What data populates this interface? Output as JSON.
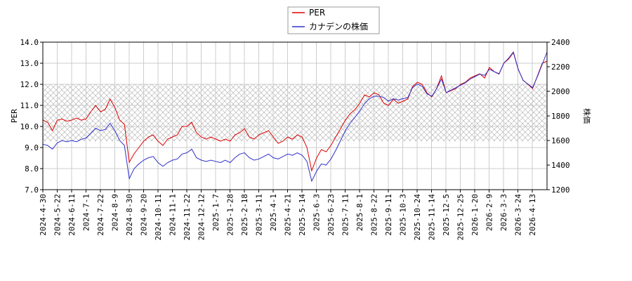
{
  "chart_data": {
    "type": "line",
    "title": "",
    "xlabel": "",
    "ylabel": "PER",
    "y2label": "株価",
    "ylim": [
      7.0,
      14.0
    ],
    "y2lim": [
      1200,
      2400
    ],
    "yticks": [
      "7.0",
      "8.0",
      "9.0",
      "10.0",
      "11.0",
      "12.0",
      "13.0",
      "14.0"
    ],
    "y2ticks": [
      "1200",
      "1400",
      "1600",
      "1800",
      "2000",
      "2200",
      "2400"
    ],
    "x_tick_labels": [
      "2024-4-30",
      "2024-5-22",
      "2024-6-11",
      "2024-7-1",
      "2024-7-22",
      "2024-8-9",
      "2024-8-30",
      "2024-9-20",
      "2024-10-11",
      "2024-11-1",
      "2024-11-22",
      "2024-12-12",
      "2025-1-7",
      "2025-1-28",
      "2025-2-18",
      "2025-3-11",
      "2025-4-1",
      "2025-4-21",
      "2025-5-14",
      "2025-6-3",
      "2025-6-23",
      "2025-7-11",
      "2025-8-1",
      "2025-8-22",
      "2025-9-11",
      "2025-10-3",
      "2025-10-24",
      "2025-11-14",
      "2025-12-5",
      "2025-12-25",
      "2026-1-20",
      "2026-2-9",
      "2026-3-3",
      "2026-3-24",
      "2026-4-13"
    ],
    "grid": true,
    "shaded_band_per": [
      9.3,
      12.0
    ],
    "legend_position": "top-center",
    "series": [
      {
        "name": "PER",
        "color": "#dd0000",
        "axis": "left",
        "values": [
          10.3,
          10.2,
          9.8,
          10.3,
          10.35,
          10.25,
          10.3,
          10.4,
          10.3,
          10.35,
          10.7,
          11.0,
          10.7,
          10.8,
          11.3,
          10.9,
          10.3,
          10.1,
          8.3,
          8.7,
          9.0,
          9.3,
          9.5,
          9.6,
          9.3,
          9.1,
          9.4,
          9.5,
          9.6,
          10.0,
          10.0,
          10.2,
          9.7,
          9.5,
          9.4,
          9.5,
          9.4,
          9.3,
          9.4,
          9.3,
          9.6,
          9.7,
          9.9,
          9.5,
          9.4,
          9.6,
          9.7,
          9.8,
          9.5,
          9.2,
          9.3,
          9.5,
          9.4,
          9.6,
          9.5,
          9.0,
          7.9,
          8.5,
          8.9,
          8.8,
          9.1,
          9.5,
          9.9,
          10.3,
          10.6,
          10.8,
          11.1,
          11.5,
          11.4,
          11.6,
          11.5,
          11.1,
          11.0,
          11.3,
          11.1,
          11.2,
          11.3,
          11.9,
          12.1,
          12.0,
          11.6,
          11.4,
          11.8,
          12.4,
          11.6,
          11.7,
          11.8,
          12.0,
          12.1,
          12.3,
          12.4,
          12.5,
          12.3,
          12.8,
          12.6,
          12.5,
          13.0,
          13.2,
          13.5,
          12.7,
          12.2,
          12.0,
          11.8,
          12.4,
          13.0,
          13.1
        ]
      },
      {
        "name": "カナデンの株価",
        "color": "#3030cc",
        "axis": "right",
        "values": [
          1570,
          1560,
          1530,
          1580,
          1600,
          1590,
          1600,
          1590,
          1610,
          1620,
          1660,
          1700,
          1680,
          1690,
          1740,
          1680,
          1600,
          1560,
          1290,
          1370,
          1410,
          1440,
          1460,
          1470,
          1420,
          1390,
          1420,
          1440,
          1450,
          1490,
          1500,
          1530,
          1460,
          1440,
          1430,
          1440,
          1430,
          1420,
          1440,
          1420,
          1460,
          1490,
          1500,
          1460,
          1440,
          1450,
          1470,
          1490,
          1460,
          1450,
          1470,
          1490,
          1480,
          1500,
          1480,
          1430,
          1270,
          1350,
          1410,
          1400,
          1450,
          1520,
          1600,
          1680,
          1740,
          1790,
          1840,
          1900,
          1940,
          1960,
          1960,
          1950,
          1920,
          1940,
          1930,
          1940,
          1950,
          2030,
          2060,
          2040,
          1980,
          1960,
          2020,
          2100,
          1990,
          2010,
          2030,
          2050,
          2070,
          2100,
          2120,
          2140,
          2130,
          2180,
          2160,
          2140,
          2230,
          2270,
          2320,
          2180,
          2090,
          2060,
          2030,
          2120,
          2220,
          2320
        ]
      }
    ]
  }
}
